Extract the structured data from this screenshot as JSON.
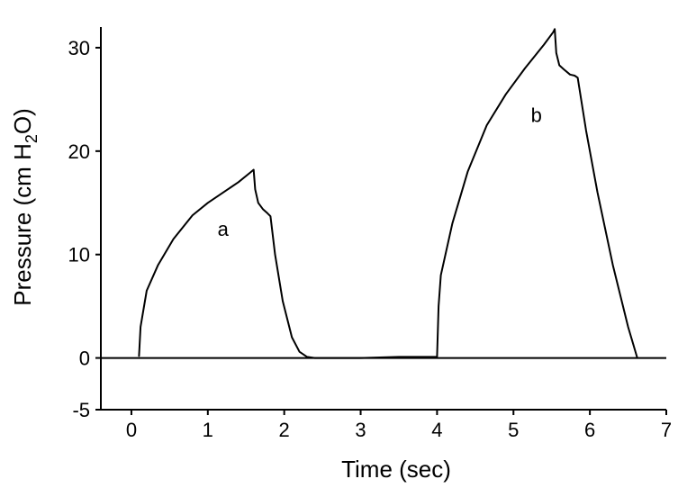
{
  "chart_data": {
    "type": "line",
    "title": "",
    "xlabel": "Time (sec)",
    "ylabel": {
      "prefix": "Pressure (cm H",
      "subscript": "2",
      "suffix": "O)"
    },
    "xlim": [
      -0.4,
      7
    ],
    "ylim": [
      -5,
      32
    ],
    "x_ticks": [
      0,
      1,
      2,
      3,
      4,
      5,
      6,
      7
    ],
    "y_ticks": [
      -5,
      0,
      10,
      20,
      30
    ],
    "grid": false,
    "zero_line": true,
    "series": [
      {
        "x": [
          0.1,
          0.12,
          0.2,
          0.35,
          0.55,
          0.8,
          1.0,
          1.2,
          1.4,
          1.55,
          1.6,
          1.62,
          1.66,
          1.72,
          1.78,
          1.82,
          1.88,
          1.98,
          2.1,
          2.2,
          2.3,
          2.4,
          2.5,
          3.0,
          3.5,
          4.0,
          4.02,
          4.05,
          4.2,
          4.4,
          4.65,
          4.9,
          5.15,
          5.4,
          5.52,
          5.54,
          5.56,
          5.6,
          5.66,
          5.74,
          5.8,
          5.84,
          5.95,
          6.1,
          6.3,
          6.5,
          6.62
        ],
        "y": [
          0.2,
          3.0,
          6.5,
          9.0,
          11.5,
          13.8,
          15.0,
          16.0,
          17.0,
          17.9,
          18.2,
          16.3,
          15.0,
          14.4,
          14.0,
          13.7,
          10.0,
          5.5,
          2.0,
          0.6,
          0.1,
          0.0,
          0.0,
          0.0,
          0.1,
          0.1,
          5.0,
          8.0,
          13.0,
          18.0,
          22.5,
          25.5,
          28.0,
          30.3,
          31.5,
          31.8,
          29.5,
          28.3,
          27.9,
          27.4,
          27.3,
          27.1,
          22.0,
          16.0,
          9.0,
          3.0,
          0.0
        ]
      }
    ],
    "annotations": [
      {
        "text": "a",
        "x": 1.2,
        "y": 11.8
      },
      {
        "text": "b",
        "x": 5.3,
        "y": 22.8
      }
    ]
  }
}
